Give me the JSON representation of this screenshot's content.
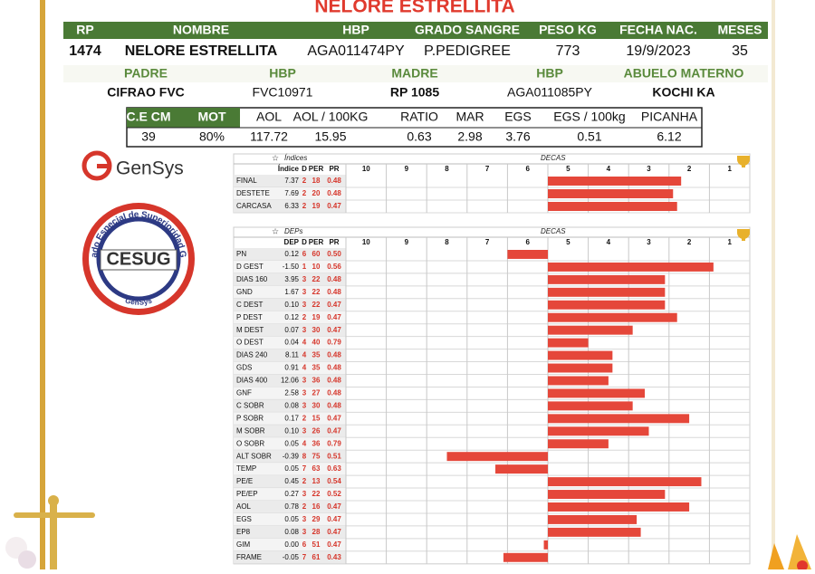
{
  "title": "NELORE ESTRELLITA",
  "animal": {
    "headers": [
      "RP",
      "NOMBRE",
      "HBP",
      "GRADO SANGRE",
      "PESO KG",
      "FECHA NAC.",
      "MESES"
    ],
    "values": [
      "1474",
      "NELORE ESTRELLITA",
      "AGA011474PY",
      "P.PEDIGREE",
      "773",
      "19/9/2023",
      "35"
    ]
  },
  "parents": {
    "headers": [
      "PADRE",
      "HBP",
      "MADRE",
      "HBP",
      "ABUELO MATERNO"
    ],
    "values": [
      "CIFRAO FVC",
      "FVC10971",
      "RP 1085",
      "AGA011085PY",
      "KOCHI KA"
    ]
  },
  "carcass": {
    "headers": [
      "C.E CM",
      "MOT",
      "AOL",
      "AOL / 100KG",
      "RATIO",
      "MAR",
      "EGS",
      "EGS / 100kg",
      "PICANHA"
    ],
    "values": [
      "39",
      "80%",
      "117.72",
      "15.95",
      "0.63",
      "2.98",
      "3.76",
      "0.51",
      "6.12"
    ]
  },
  "logos": {
    "gensys": "GenSys",
    "cesug": "CESUG",
    "cesug_ring": "Certificado Especial de Superioridad Genética",
    "cesug_sub": "GenSys"
  },
  "deca_axis": {
    "xlim": [
      10.5,
      0.5
    ],
    "xticks": [
      10,
      9,
      8,
      7,
      6,
      5,
      4,
      3,
      2,
      1
    ]
  },
  "indices": {
    "title": "Índices",
    "decas_label": "DECAS",
    "columns": [
      "Índice",
      "D",
      "PER",
      "PR"
    ],
    "rows": [
      {
        "label": "FINAL",
        "value": "7.37",
        "d": "2",
        "per": "18",
        "pr": "0.48",
        "deca": 2.2
      },
      {
        "label": "DESTETE",
        "value": "7.69",
        "d": "2",
        "per": "20",
        "pr": "0.48",
        "deca": 2.4
      },
      {
        "label": "CARCASA",
        "value": "6.33",
        "d": "2",
        "per": "19",
        "pr": "0.47",
        "deca": 2.3
      }
    ]
  },
  "deps": {
    "title": "DEPs",
    "decas_label": "DECAS",
    "columns": [
      "DEP",
      "D",
      "PER",
      "PR"
    ],
    "rows": [
      {
        "label": "PN",
        "value": "0.12",
        "d": "6",
        "per": "60",
        "pr": "0.50",
        "deca": 6.5
      },
      {
        "label": "D GEST",
        "value": "-1.50",
        "d": "1",
        "per": "10",
        "pr": "0.56",
        "deca": 1.4
      },
      {
        "label": "DIAS 160",
        "value": "3.95",
        "d": "3",
        "per": "22",
        "pr": "0.48",
        "deca": 2.6
      },
      {
        "label": "GND",
        "value": "1.67",
        "d": "3",
        "per": "22",
        "pr": "0.48",
        "deca": 2.6
      },
      {
        "label": "C DEST",
        "value": "0.10",
        "d": "3",
        "per": "22",
        "pr": "0.47",
        "deca": 2.6
      },
      {
        "label": "P DEST",
        "value": "0.12",
        "d": "2",
        "per": "19",
        "pr": "0.47",
        "deca": 2.3
      },
      {
        "label": "M DEST",
        "value": "0.07",
        "d": "3",
        "per": "30",
        "pr": "0.47",
        "deca": 3.4
      },
      {
        "label": "O DEST",
        "value": "0.04",
        "d": "4",
        "per": "40",
        "pr": "0.79",
        "deca": 4.5
      },
      {
        "label": "DIAS 240",
        "value": "8.11",
        "d": "4",
        "per": "35",
        "pr": "0.48",
        "deca": 3.9
      },
      {
        "label": "GDS",
        "value": "0.91",
        "d": "4",
        "per": "35",
        "pr": "0.48",
        "deca": 3.9
      },
      {
        "label": "DIAS 400",
        "value": "12.06",
        "d": "3",
        "per": "36",
        "pr": "0.48",
        "deca": 4.0
      },
      {
        "label": "GNF",
        "value": "2.58",
        "d": "3",
        "per": "27",
        "pr": "0.48",
        "deca": 3.1
      },
      {
        "label": "C SOBR",
        "value": "0.08",
        "d": "3",
        "per": "30",
        "pr": "0.48",
        "deca": 3.4
      },
      {
        "label": "P SOBR",
        "value": "0.17",
        "d": "2",
        "per": "15",
        "pr": "0.47",
        "deca": 2.0
      },
      {
        "label": "M SOBR",
        "value": "0.10",
        "d": "3",
        "per": "26",
        "pr": "0.47",
        "deca": 3.0
      },
      {
        "label": "O SOBR",
        "value": "0.05",
        "d": "4",
        "per": "36",
        "pr": "0.79",
        "deca": 4.0
      },
      {
        "label": "ALT SOBR",
        "value": "-0.39",
        "d": "8",
        "per": "75",
        "pr": "0.51",
        "deca": 8.0
      },
      {
        "label": "TEMP",
        "value": "0.05",
        "d": "7",
        "per": "63",
        "pr": "0.63",
        "deca": 6.8
      },
      {
        "label": "PE/E",
        "value": "0.45",
        "d": "2",
        "per": "13",
        "pr": "0.54",
        "deca": 1.7
      },
      {
        "label": "PE/EP",
        "value": "0.27",
        "d": "3",
        "per": "22",
        "pr": "0.52",
        "deca": 2.6
      },
      {
        "label": "AOL",
        "value": "0.78",
        "d": "2",
        "per": "16",
        "pr": "0.47",
        "deca": 2.0
      },
      {
        "label": "EGS",
        "value": "0.05",
        "d": "3",
        "per": "29",
        "pr": "0.47",
        "deca": 3.3
      },
      {
        "label": "EP8",
        "value": "0.08",
        "d": "3",
        "per": "28",
        "pr": "0.47",
        "deca": 3.2
      },
      {
        "label": "GIM",
        "value": "0.00",
        "d": "6",
        "per": "51",
        "pr": "0.47",
        "deca": 5.6
      },
      {
        "label": "FRAME",
        "value": "-0.05",
        "d": "7",
        "per": "61",
        "pr": "0.43",
        "deca": 6.6
      }
    ]
  }
}
